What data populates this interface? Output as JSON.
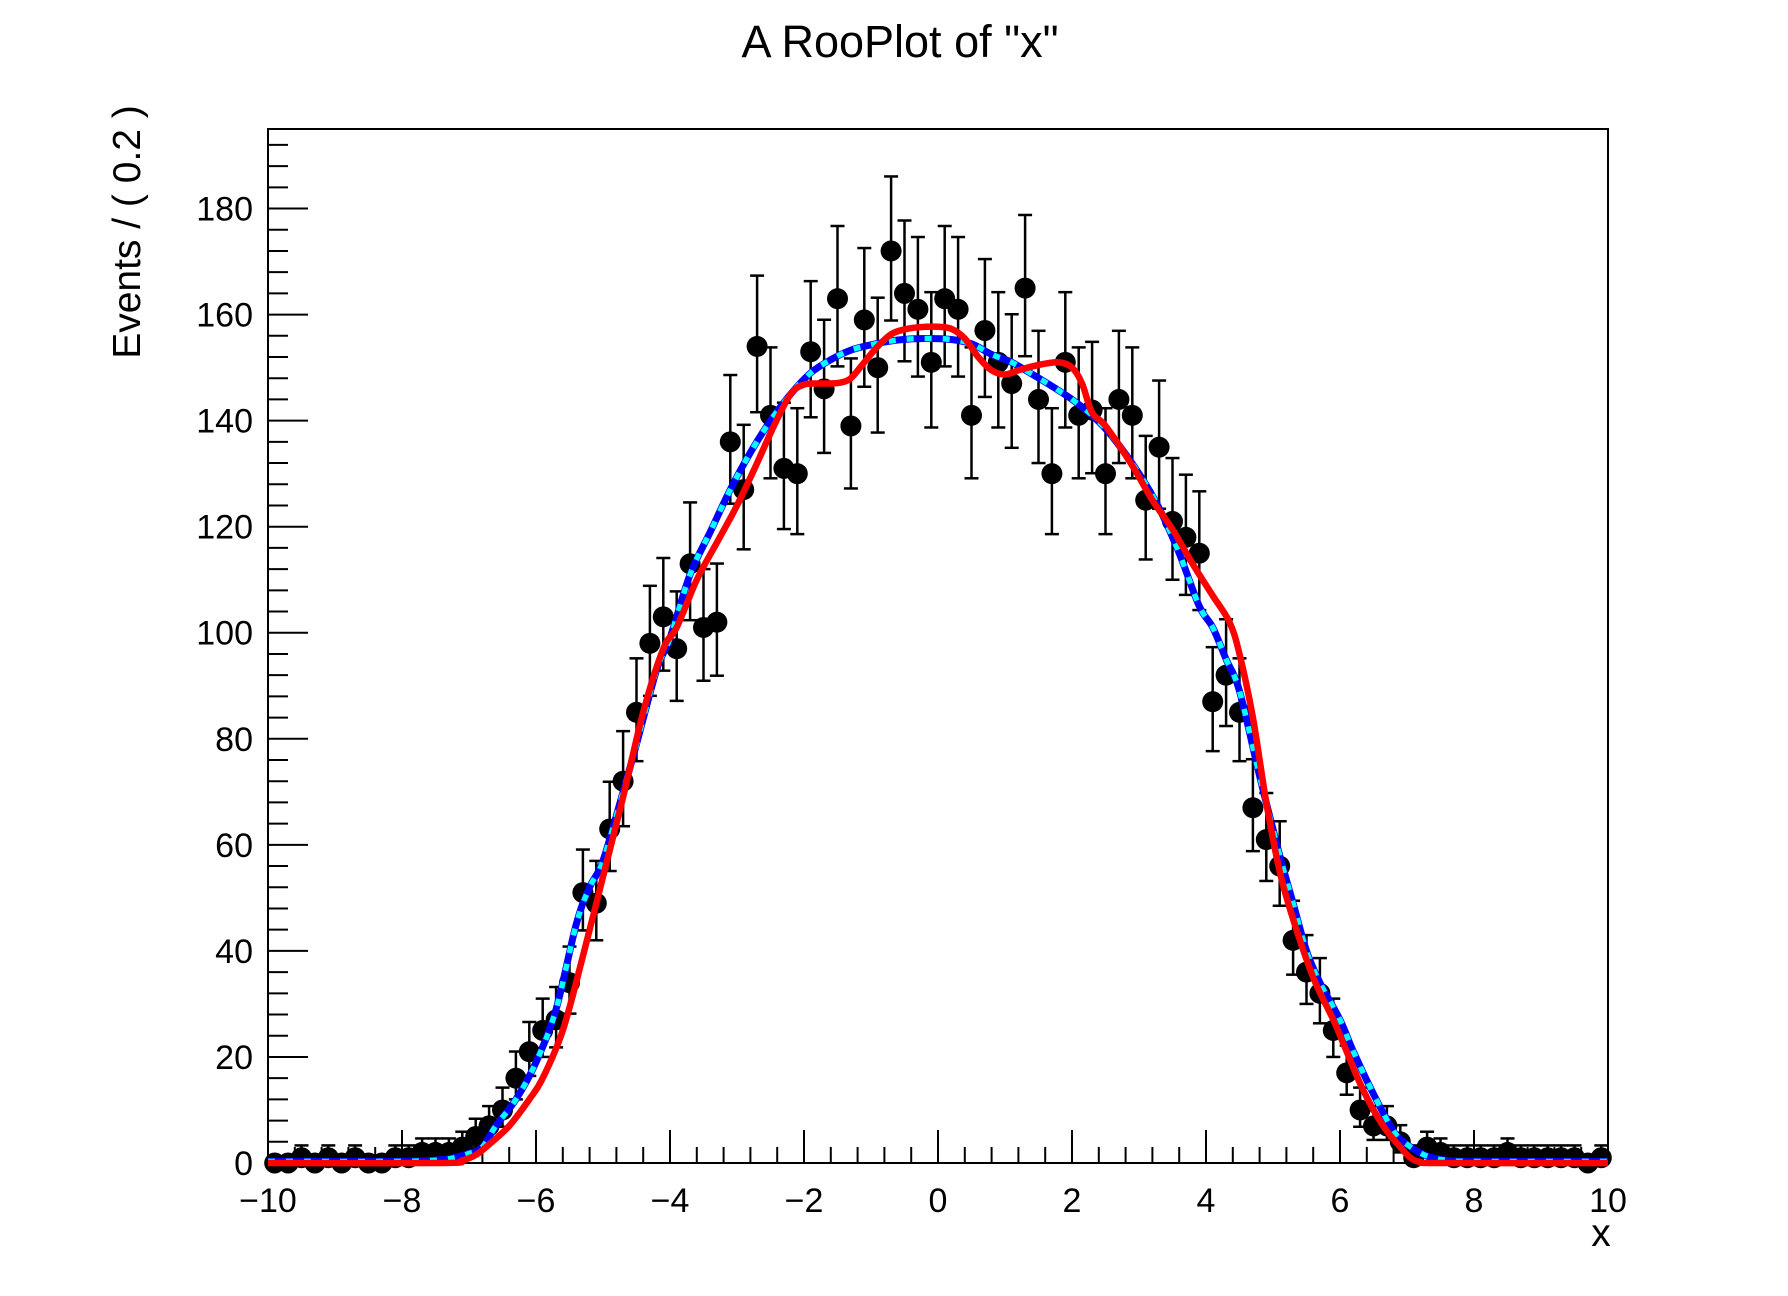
{
  "title": "A RooPlot of \"x\"",
  "x_axis": {
    "title": "x",
    "min": -10,
    "max": 10,
    "major_tick_step": 2,
    "minor_tick_step": 0.4,
    "tick_values": [
      -10,
      -8,
      -6,
      -4,
      -2,
      0,
      2,
      4,
      6,
      8,
      10
    ],
    "tick_labels": [
      "−10",
      "−8",
      "−6",
      "−4",
      "−2",
      "0",
      "2",
      "4",
      "6",
      "8",
      "10"
    ]
  },
  "y_axis": {
    "title": "Events / ( 0.2 )",
    "min": 0,
    "max": 195,
    "major_tick_step": 20,
    "minor_tick_step": 4,
    "tick_values": [
      0,
      20,
      40,
      60,
      80,
      100,
      120,
      140,
      160,
      180
    ],
    "tick_labels": [
      "0",
      "20",
      "40",
      "60",
      "80",
      "100",
      "120",
      "140",
      "160",
      "180"
    ]
  },
  "colors": {
    "background": "#ffffff",
    "frame": "#000000",
    "data_points": "#000000",
    "curve_blue": "#0000ff",
    "curve_cyan": "#00ffff",
    "curve_red": "#ff0000"
  },
  "chart_data": {
    "type": "scatter",
    "title": "A RooPlot of \"x\"",
    "xlabel": "x",
    "ylabel": "Events / ( 0.2 )",
    "xlim": [
      -10,
      10
    ],
    "ylim": [
      0,
      195
    ],
    "grid": false,
    "legend": false,
    "bin_width": 0.2,
    "series": [
      {
        "name": "binned-data-with-poisson-errors",
        "type": "scatter-errorbars",
        "marker": "filled-circle",
        "color": "#000000",
        "x": [
          -9.9,
          -9.7,
          -9.5,
          -9.3,
          -9.1,
          -8.9,
          -8.7,
          -8.5,
          -8.3,
          -8.1,
          -7.9,
          -7.7,
          -7.5,
          -7.3,
          -7.1,
          -6.9,
          -6.7,
          -6.5,
          -6.3,
          -6.1,
          -5.9,
          -5.7,
          -5.5,
          -5.3,
          -5.1,
          -4.9,
          -4.7,
          -4.5,
          -4.3,
          -4.1,
          -3.9,
          -3.7,
          -3.5,
          -3.3,
          -3.1,
          -2.9,
          -2.7,
          -2.5,
          -2.3,
          -2.1,
          -1.9,
          -1.7,
          -1.5,
          -1.3,
          -1.1,
          -0.9,
          -0.7,
          -0.5,
          -0.3,
          -0.1,
          0.1,
          0.3,
          0.5,
          0.7,
          0.9,
          1.1,
          1.3,
          1.5,
          1.7,
          1.9,
          2.1,
          2.3,
          2.5,
          2.7,
          2.9,
          3.1,
          3.3,
          3.5,
          3.7,
          3.9,
          4.1,
          4.3,
          4.5,
          4.7,
          4.9,
          5.1,
          5.3,
          5.5,
          5.7,
          5.9,
          6.1,
          6.3,
          6.5,
          6.7,
          6.9,
          7.1,
          7.3,
          7.5,
          7.7,
          7.9,
          8.1,
          8.3,
          8.5,
          8.7,
          8.9,
          9.1,
          9.3,
          9.5,
          9.7,
          9.9
        ],
        "y": [
          0,
          0,
          1,
          0,
          1,
          0,
          1,
          0,
          0,
          1,
          1,
          2,
          2,
          2,
          3,
          5,
          7,
          10,
          16,
          21,
          25,
          27,
          34,
          51,
          49,
          63,
          72,
          85,
          98,
          103,
          97,
          113,
          101,
          102,
          136,
          127,
          154,
          141,
          131,
          130,
          153,
          146,
          163,
          139,
          159,
          150,
          172,
          164,
          161,
          151,
          163,
          161,
          141,
          157,
          151,
          147,
          165,
          144,
          130,
          151,
          141,
          142,
          130,
          144,
          141,
          125,
          135,
          121,
          118,
          115,
          87,
          92,
          85,
          67,
          61,
          56,
          42,
          36,
          32,
          25,
          17,
          10,
          7,
          7,
          4,
          1,
          3,
          2,
          1,
          1,
          1,
          1,
          2,
          1,
          1,
          1,
          1,
          1,
          0,
          1
        ]
      },
      {
        "name": "pdf-curve-blue-solid",
        "type": "line",
        "style": "solid",
        "color": "#0000ff",
        "points": [
          [
            -10,
            0.3
          ],
          [
            -8.2,
            0.3
          ],
          [
            -7.7,
            0.4
          ],
          [
            -7.3,
            0.8
          ],
          [
            -7.0,
            1.8
          ],
          [
            -6.8,
            3
          ],
          [
            -6.6,
            7
          ],
          [
            -6.3,
            12
          ],
          [
            -6.0,
            19
          ],
          [
            -5.7,
            29
          ],
          [
            -5.4,
            45
          ],
          [
            -5.2,
            52
          ],
          [
            -5.0,
            57
          ],
          [
            -4.7,
            70
          ],
          [
            -4.5,
            79
          ],
          [
            -4.2,
            93
          ],
          [
            -4.0,
            99
          ],
          [
            -3.7,
            111
          ],
          [
            -3.4,
            119
          ],
          [
            -3.1,
            127
          ],
          [
            -2.8,
            134
          ],
          [
            -2.5,
            140
          ],
          [
            -2.2,
            145
          ],
          [
            -1.9,
            149
          ],
          [
            -1.6,
            151.5
          ],
          [
            -1.3,
            153.3
          ],
          [
            -1.0,
            154.3
          ],
          [
            -0.6,
            155.2
          ],
          [
            -0.2,
            155.5
          ],
          [
            0.2,
            155.3
          ],
          [
            0.5,
            154.5
          ],
          [
            0.8,
            152.5
          ],
          [
            1.1,
            151
          ],
          [
            1.4,
            148.8
          ],
          [
            1.7,
            146.5
          ],
          [
            2.0,
            144
          ],
          [
            2.3,
            141
          ],
          [
            2.6,
            137
          ],
          [
            3.0,
            130
          ],
          [
            3.3,
            123.5
          ],
          [
            3.6,
            115
          ],
          [
            3.9,
            105
          ],
          [
            4.1,
            101
          ],
          [
            4.3,
            95
          ],
          [
            4.5,
            89
          ],
          [
            4.8,
            73
          ],
          [
            5.1,
            58
          ],
          [
            5.3,
            49
          ],
          [
            5.5,
            40
          ],
          [
            5.7,
            34
          ],
          [
            6.0,
            27
          ],
          [
            6.2,
            21
          ],
          [
            6.5,
            13
          ],
          [
            6.8,
            6
          ],
          [
            7.0,
            3.5
          ],
          [
            7.3,
            1.3
          ],
          [
            7.6,
            0.5
          ],
          [
            8.0,
            0.3
          ],
          [
            10,
            0.3
          ]
        ]
      },
      {
        "name": "pdf-curve-cyan-dotted-overlay",
        "type": "line",
        "style": "dotted",
        "color": "#00ffff",
        "points": "same-as-pdf-curve-blue-solid"
      },
      {
        "name": "pdf-curve-red-solid",
        "type": "line",
        "style": "solid",
        "color": "#ff0000",
        "points": [
          [
            -10,
            0
          ],
          [
            -7.4,
            0
          ],
          [
            -7.1,
            0.5
          ],
          [
            -6.9,
            1.5
          ],
          [
            -6.7,
            3.5
          ],
          [
            -6.4,
            7
          ],
          [
            -6.1,
            12
          ],
          [
            -5.9,
            16
          ],
          [
            -5.6,
            25
          ],
          [
            -5.3,
            39
          ],
          [
            -5.0,
            54
          ],
          [
            -4.7,
            69
          ],
          [
            -4.4,
            85
          ],
          [
            -4.1,
            97
          ],
          [
            -3.9,
            101
          ],
          [
            -3.6,
            110
          ],
          [
            -3.3,
            117
          ],
          [
            -3.0,
            124
          ],
          [
            -2.7,
            132
          ],
          [
            -2.45,
            139
          ],
          [
            -2.2,
            145
          ],
          [
            -2.0,
            146.8
          ],
          [
            -1.8,
            147
          ],
          [
            -1.6,
            147
          ],
          [
            -1.45,
            147.2
          ],
          [
            -1.3,
            148
          ],
          [
            -1.1,
            151
          ],
          [
            -0.9,
            154
          ],
          [
            -0.7,
            156.3
          ],
          [
            -0.5,
            157.2
          ],
          [
            -0.3,
            157.6
          ],
          [
            0,
            157.7
          ],
          [
            0.2,
            157.3
          ],
          [
            0.4,
            155.5
          ],
          [
            0.6,
            152
          ],
          [
            0.8,
            149.5
          ],
          [
            1.0,
            148.7
          ],
          [
            1.2,
            149.5
          ],
          [
            1.5,
            150.5
          ],
          [
            1.8,
            151
          ],
          [
            2.0,
            150
          ],
          [
            2.15,
            147
          ],
          [
            2.3,
            141.5
          ],
          [
            2.5,
            139
          ],
          [
            2.9,
            131.5
          ],
          [
            3.2,
            125
          ],
          [
            3.5,
            119.5
          ],
          [
            3.8,
            113
          ],
          [
            4.1,
            107
          ],
          [
            4.35,
            102
          ],
          [
            4.5,
            96
          ],
          [
            4.7,
            84
          ],
          [
            4.9,
            68
          ],
          [
            5.1,
            55
          ],
          [
            5.3,
            46
          ],
          [
            5.6,
            35
          ],
          [
            5.9,
            27
          ],
          [
            6.1,
            21
          ],
          [
            6.3,
            15
          ],
          [
            6.5,
            10
          ],
          [
            6.7,
            6
          ],
          [
            6.9,
            3
          ],
          [
            7.05,
            1
          ],
          [
            7.2,
            0.2
          ],
          [
            7.5,
            0
          ],
          [
            10,
            0
          ]
        ]
      }
    ]
  }
}
